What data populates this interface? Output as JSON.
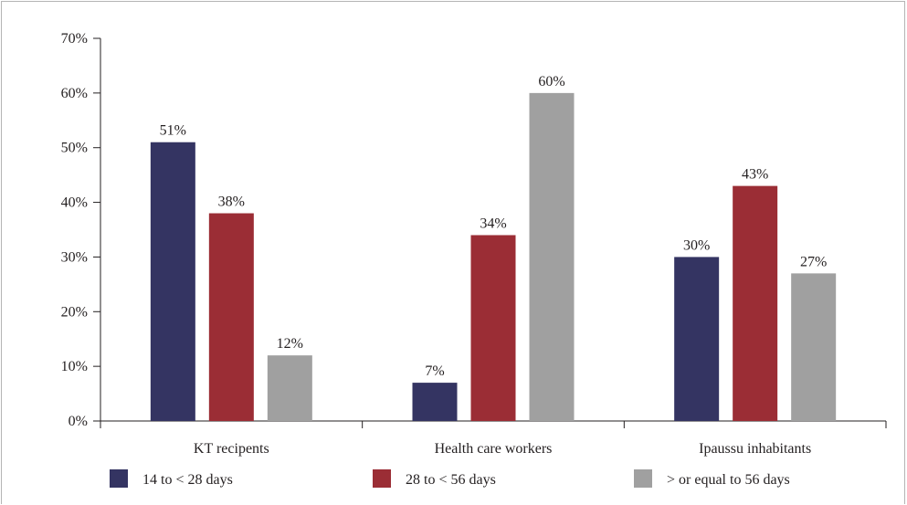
{
  "chart_data": {
    "type": "bar",
    "categories": [
      "KT recipents",
      "Health care workers",
      "Ipaussu inhabitants"
    ],
    "series": [
      {
        "name": "14 to < 28 days",
        "color": "#343462",
        "values": [
          51,
          7,
          30
        ],
        "labels": [
          "51%",
          "7%",
          "30%"
        ]
      },
      {
        "name": "28 to < 56 days",
        "color": "#9b2d35",
        "values": [
          38,
          34,
          43
        ],
        "labels": [
          "38%",
          "34%",
          "43%"
        ]
      },
      {
        "name": "> or equal to 56 days",
        "color": "#a0a0a0",
        "values": [
          12,
          60,
          27
        ],
        "labels": [
          "12%",
          "60%",
          "27%"
        ]
      }
    ],
    "ylim": [
      0,
      70
    ],
    "yticks": [
      "0%",
      "10%",
      "20%",
      "30%",
      "40%",
      "50%",
      "60%",
      "70%"
    ],
    "ytick_values": [
      0,
      10,
      20,
      30,
      40,
      50,
      60,
      70
    ],
    "legend_position": "bottom",
    "grid": false
  }
}
